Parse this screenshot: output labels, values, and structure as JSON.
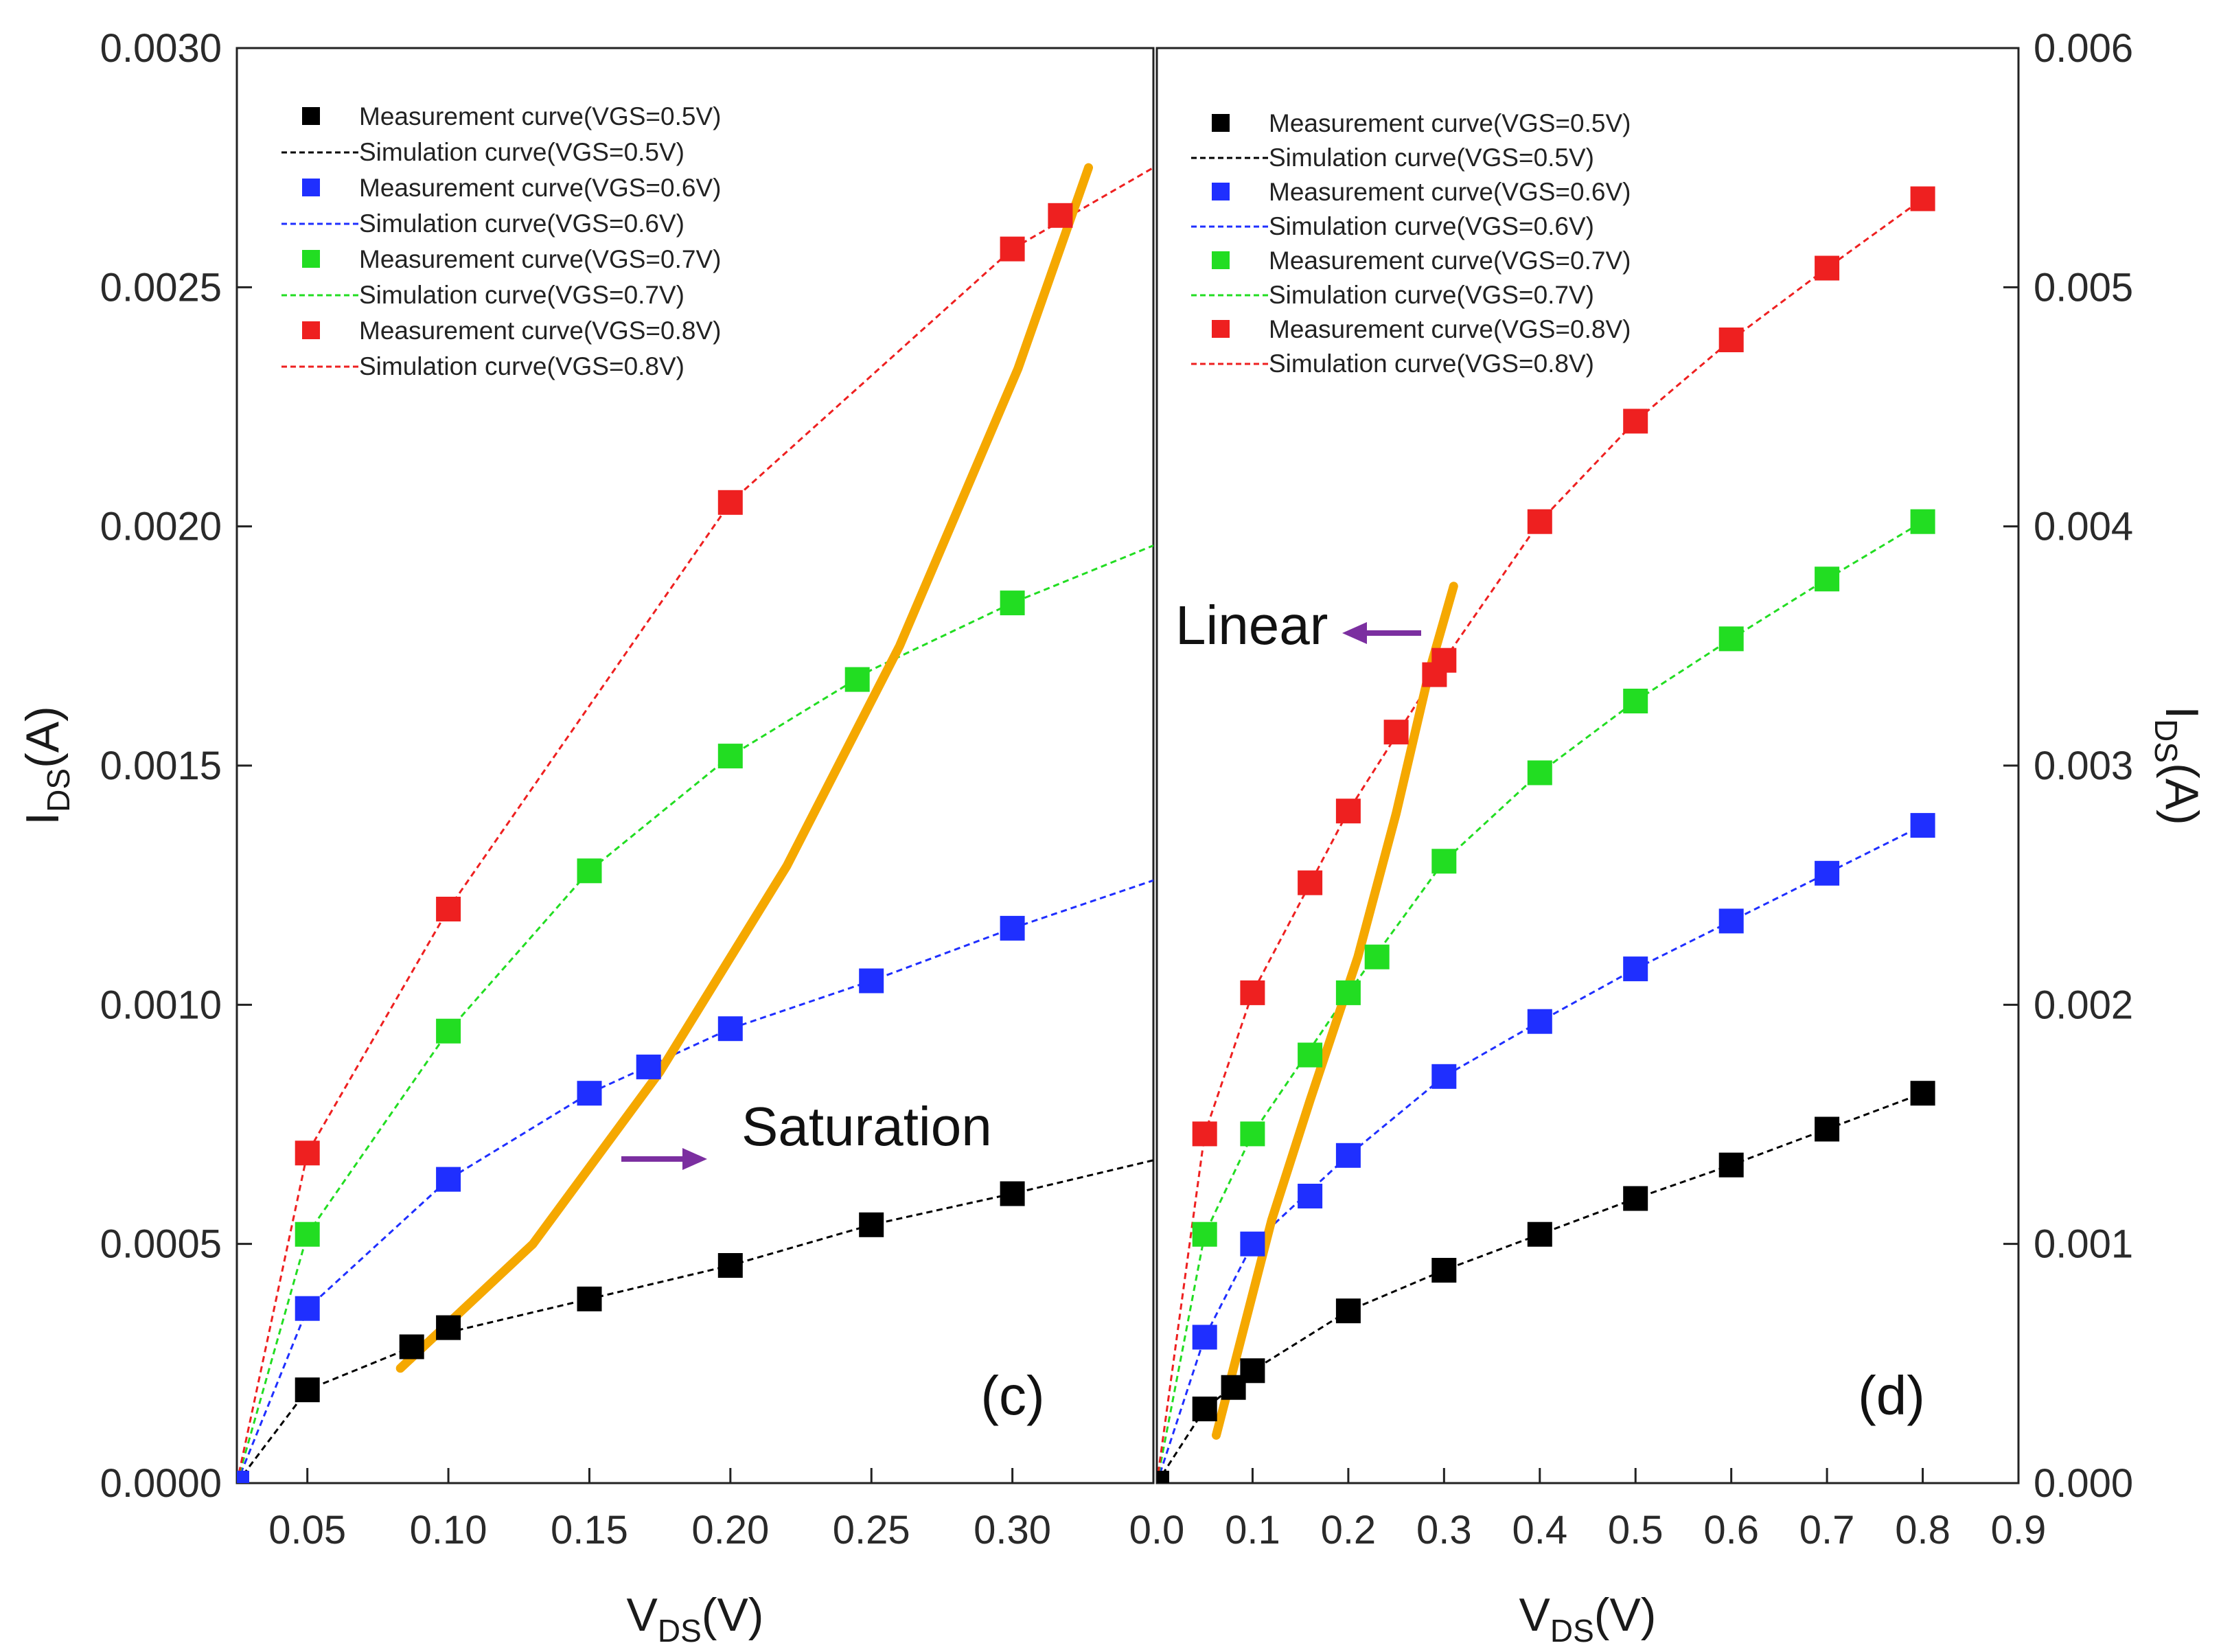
{
  "chart_data": [
    {
      "type": "scatter",
      "panel_label": "(c)",
      "xlabel_main": "V",
      "xlabel_sub": "DS",
      "xlabel_unit": "(V)",
      "ylabel_main": "I",
      "ylabel_sub": "DS",
      "ylabel_unit": "(A)",
      "xlim": [
        0.025,
        0.35
      ],
      "ylim": [
        0.0,
        0.003
      ],
      "xticks": [
        0.05,
        0.1,
        0.15,
        0.2,
        0.25,
        0.3
      ],
      "xtick_labels": [
        "0.05",
        "0.10",
        "0.15",
        "0.20",
        "0.25",
        "0.30"
      ],
      "yticks": [
        0.0,
        0.0005,
        0.001,
        0.0015,
        0.002,
        0.0025,
        0.003
      ],
      "ytick_labels": [
        "0.0000",
        "0.0005",
        "0.0010",
        "0.0015",
        "0.0020",
        "0.0025",
        "0.0030"
      ],
      "legend_position": "top-left",
      "series": [
        {
          "name": "VGS=0.5V",
          "color": "#000000",
          "meas_x": [
            0.025,
            0.05,
            0.087,
            0.1,
            0.15,
            0.2,
            0.25,
            0.3
          ],
          "meas_y": [
            0.0,
            0.000195,
            0.000285,
            0.000325,
            0.000385,
            0.000455,
            0.00054,
            0.000605
          ],
          "sim_x": [
            0.025,
            0.05,
            0.1,
            0.15,
            0.2,
            0.25,
            0.3,
            0.35
          ],
          "sim_y": [
            0.0,
            0.000195,
            0.000315,
            0.000385,
            0.000455,
            0.00054,
            0.000605,
            0.000675
          ]
        },
        {
          "name": "VGS=0.6V",
          "color": "#1f2fff",
          "meas_x": [
            0.025,
            0.05,
            0.1,
            0.15,
            0.171,
            0.2,
            0.25,
            0.3
          ],
          "meas_y": [
            0.0,
            0.000365,
            0.000635,
            0.000815,
            0.00087,
            0.00095,
            0.00105,
            0.00116
          ],
          "sim_x": [
            0.025,
            0.05,
            0.1,
            0.15,
            0.2,
            0.25,
            0.3,
            0.35
          ],
          "sim_y": [
            0.0,
            0.000365,
            0.000635,
            0.000815,
            0.00095,
            0.00105,
            0.00116,
            0.00126
          ]
        },
        {
          "name": "VGS=0.7V",
          "color": "#22dd22",
          "meas_x": [
            0.05,
            0.1,
            0.15,
            0.2,
            0.245,
            0.3
          ],
          "meas_y": [
            0.00052,
            0.000945,
            0.00128,
            0.00152,
            0.00168,
            0.00184
          ],
          "sim_x": [
            0.025,
            0.05,
            0.1,
            0.15,
            0.2,
            0.25,
            0.3,
            0.35
          ],
          "sim_y": [
            0.0,
            0.00052,
            0.000945,
            0.00128,
            0.00152,
            0.0017,
            0.00184,
            0.00196
          ]
        },
        {
          "name": "VGS=0.8V",
          "color": "#ee2020",
          "meas_x": [
            0.05,
            0.1,
            0.2,
            0.3,
            0.317
          ],
          "meas_y": [
            0.00069,
            0.0012,
            0.00205,
            0.00258,
            0.00265
          ],
          "sim_x": [
            0.025,
            0.05,
            0.1,
            0.2,
            0.3,
            0.35
          ],
          "sim_y": [
            0.0,
            0.00069,
            0.0012,
            0.00205,
            0.00258,
            0.00275
          ]
        }
      ],
      "boundary_line": {
        "label": "Saturation",
        "color": "#f5a800",
        "x": [
          0.083,
          0.13,
          0.175,
          0.22,
          0.26,
          0.302,
          0.327
        ],
        "y": [
          0.00024,
          0.0005,
          0.00086,
          0.00129,
          0.00175,
          0.00233,
          0.00275
        ]
      }
    },
    {
      "type": "scatter",
      "panel_label": "(d)",
      "xlabel_main": "V",
      "xlabel_sub": "DS",
      "xlabel_unit": "(V)",
      "ylabel_main": "I",
      "ylabel_sub": "DS",
      "ylabel_unit": "(A)",
      "xlim": [
        0.0,
        0.9
      ],
      "ylim": [
        0.0,
        0.006
      ],
      "xticks": [
        0.0,
        0.1,
        0.2,
        0.3,
        0.4,
        0.5,
        0.6,
        0.7,
        0.8,
        0.9
      ],
      "xtick_labels": [
        "0.0",
        "0.1",
        "0.2",
        "0.3",
        "0.4",
        "0.5",
        "0.6",
        "0.7",
        "0.8",
        "0.9"
      ],
      "yticks": [
        0.0,
        0.001,
        0.002,
        0.003,
        0.004,
        0.005,
        0.006
      ],
      "ytick_labels": [
        "0.000",
        "0.001",
        "0.002",
        "0.003",
        "0.004",
        "0.005",
        "0.006"
      ],
      "legend_position": "top-left",
      "series": [
        {
          "name": "VGS=0.5V",
          "color": "#000000",
          "meas_x": [
            0.0,
            0.05,
            0.08,
            0.1,
            0.2,
            0.3,
            0.4,
            0.5,
            0.6,
            0.7,
            0.8
          ],
          "meas_y": [
            0.0,
            0.00031,
            0.0004,
            0.00047,
            0.00072,
            0.00089,
            0.00104,
            0.00119,
            0.00133,
            0.00148,
            0.00163
          ],
          "sim_x": [
            0.0,
            0.05,
            0.1,
            0.2,
            0.3,
            0.4,
            0.5,
            0.6,
            0.7,
            0.8
          ],
          "sim_y": [
            0.0,
            0.00031,
            0.00047,
            0.00072,
            0.00089,
            0.00104,
            0.00119,
            0.00133,
            0.00148,
            0.00163
          ]
        },
        {
          "name": "VGS=0.6V",
          "color": "#1f2fff",
          "meas_x": [
            0.05,
            0.1,
            0.16,
            0.2,
            0.3,
            0.4,
            0.5,
            0.6,
            0.7,
            0.8
          ],
          "meas_y": [
            0.00061,
            0.001,
            0.0012,
            0.00137,
            0.0017,
            0.00193,
            0.00215,
            0.00235,
            0.00255,
            0.00275
          ],
          "sim_x": [
            0.0,
            0.05,
            0.1,
            0.2,
            0.3,
            0.4,
            0.5,
            0.6,
            0.7,
            0.8
          ],
          "sim_y": [
            0.0,
            0.00061,
            0.001,
            0.00137,
            0.0017,
            0.00193,
            0.00215,
            0.00235,
            0.00255,
            0.00275
          ]
        },
        {
          "name": "VGS=0.7V",
          "color": "#22dd22",
          "meas_x": [
            0.05,
            0.1,
            0.16,
            0.2,
            0.23,
            0.3,
            0.4,
            0.5,
            0.6,
            0.7,
            0.8
          ],
          "meas_y": [
            0.00104,
            0.00146,
            0.00179,
            0.00205,
            0.0022,
            0.0026,
            0.00297,
            0.00327,
            0.00353,
            0.00378,
            0.00402
          ],
          "sim_x": [
            0.0,
            0.05,
            0.1,
            0.2,
            0.3,
            0.4,
            0.5,
            0.6,
            0.7,
            0.8
          ],
          "sim_y": [
            0.0,
            0.00104,
            0.00146,
            0.00205,
            0.0026,
            0.00297,
            0.00327,
            0.00353,
            0.00378,
            0.00402
          ]
        },
        {
          "name": "VGS=0.8V",
          "color": "#ee2020",
          "meas_x": [
            0.05,
            0.1,
            0.16,
            0.2,
            0.25,
            0.29,
            0.3,
            0.4,
            0.5,
            0.6,
            0.7,
            0.8
          ],
          "meas_y": [
            0.00146,
            0.00205,
            0.00251,
            0.00281,
            0.00314,
            0.00338,
            0.00344,
            0.00402,
            0.00444,
            0.00478,
            0.00508,
            0.00537
          ],
          "sim_x": [
            0.0,
            0.05,
            0.1,
            0.2,
            0.3,
            0.4,
            0.5,
            0.6,
            0.7,
            0.8
          ],
          "sim_y": [
            0.0,
            0.00146,
            0.00205,
            0.00281,
            0.00344,
            0.00402,
            0.00444,
            0.00478,
            0.00508,
            0.00537
          ]
        }
      ],
      "boundary_line": {
        "label": "Linear",
        "color": "#f5a800",
        "x": [
          0.062,
          0.12,
          0.16,
          0.21,
          0.25,
          0.285,
          0.31
        ],
        "y": [
          0.0002,
          0.0011,
          0.0016,
          0.0022,
          0.0028,
          0.0034,
          0.00375
        ]
      }
    }
  ],
  "legend_labels": [
    "Measurement curve(VGS=0.5V)",
    "Simulation curve(VGS=0.5V)",
    "Measurement curve(VGS=0.6V)",
    "Simulation curve(VGS=0.6V)",
    "Measurement curve(VGS=0.7V)",
    "Simulation curve(VGS=0.7V)",
    "Measurement curve(VGS=0.8V)",
    "Simulation curve(VGS=0.8V)"
  ],
  "legend_colors": [
    "#000000",
    "#000000",
    "#1f2fff",
    "#1f2fff",
    "#22dd22",
    "#22dd22",
    "#ee2020",
    "#ee2020"
  ],
  "arrow_color": "#7b2fa0"
}
